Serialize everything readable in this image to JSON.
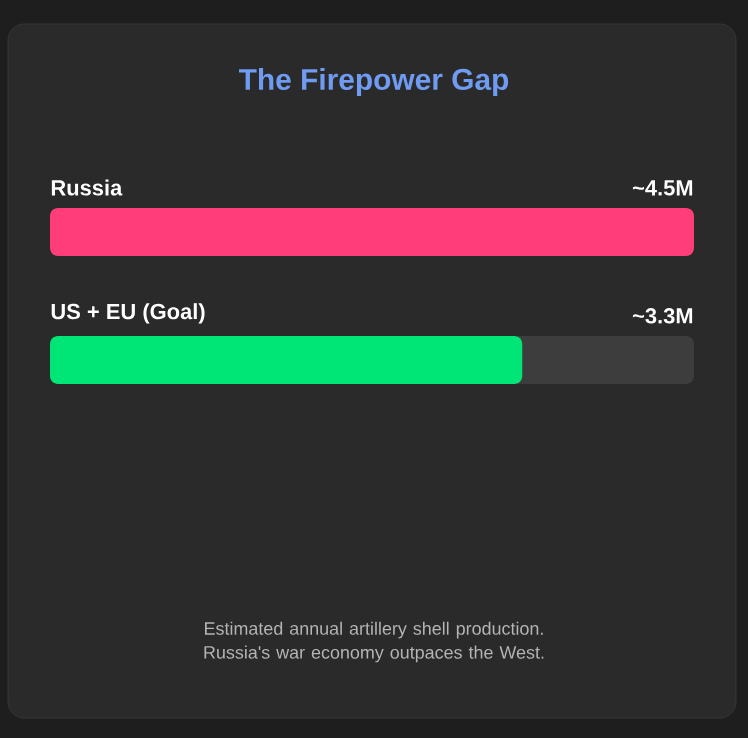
{
  "chart_data": {
    "type": "bar",
    "orientation": "horizontal",
    "title": "The Firepower Gap",
    "categories": [
      "Russia",
      "US + EU (Goal)"
    ],
    "values": [
      4.5,
      3.3
    ],
    "colors": [
      "#ff3d7a",
      "#00e676"
    ],
    "value_labels": [
      "~4.5M",
      "~3.3M"
    ],
    "annotations": [
      "Estimated annual artillery shell production. Russia's war economy outpaces the West."
    ]
  }
}
